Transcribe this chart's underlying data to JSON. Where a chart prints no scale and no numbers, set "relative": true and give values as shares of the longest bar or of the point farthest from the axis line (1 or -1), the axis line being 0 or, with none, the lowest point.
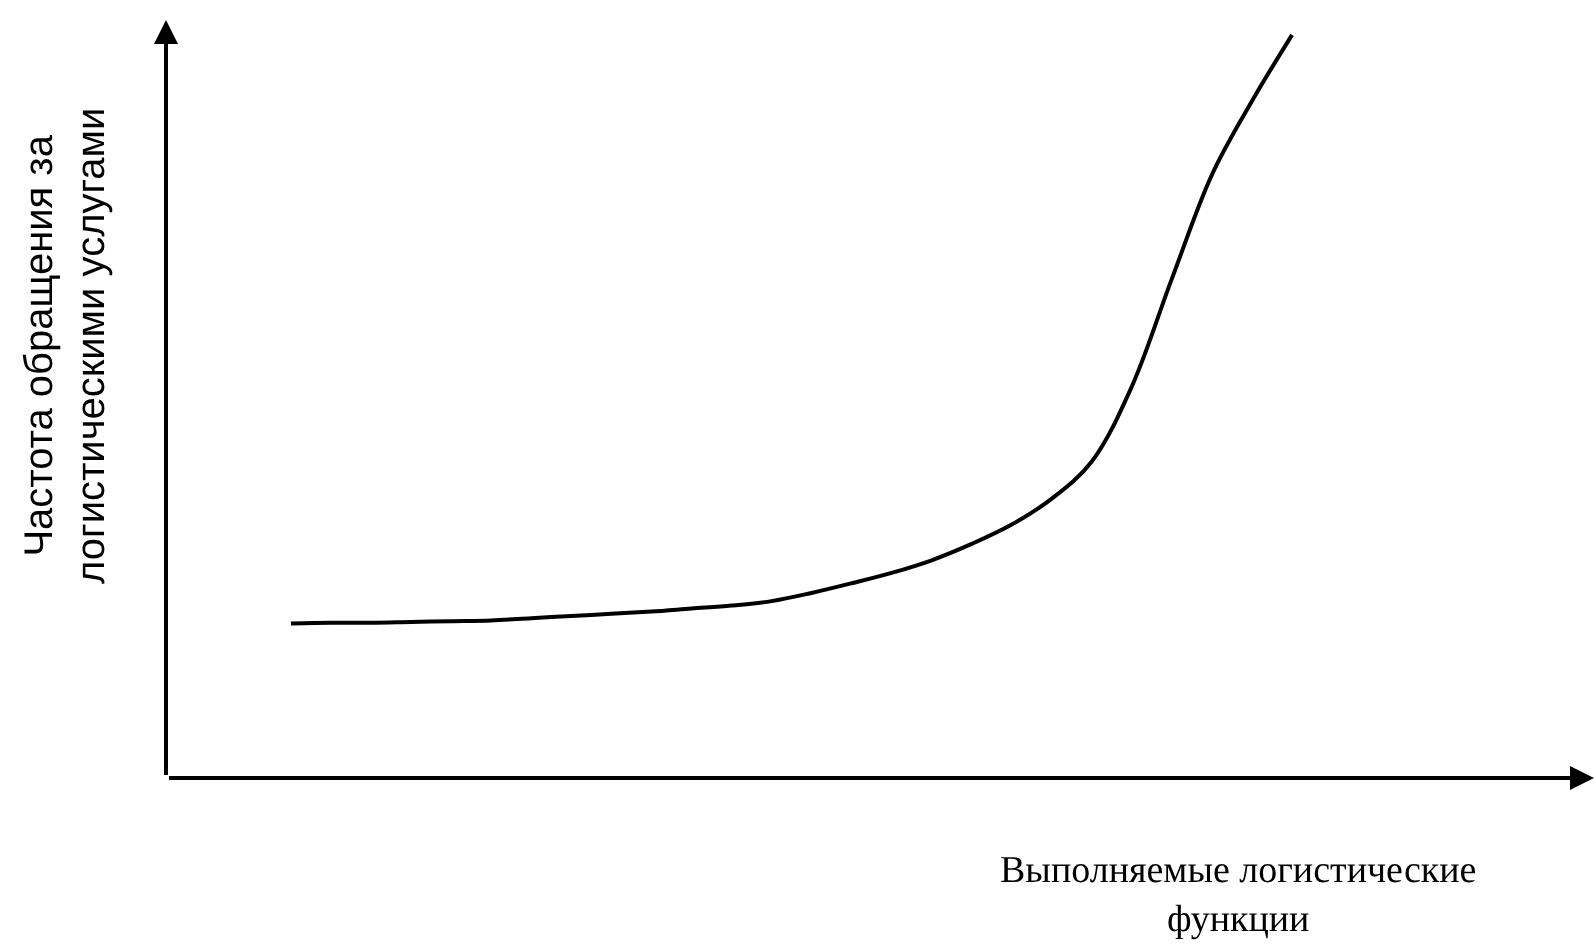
{
  "chart_data": {
    "type": "line",
    "relative": true,
    "categories": [
      null,
      null,
      null,
      null,
      null,
      null,
      null,
      null,
      null,
      null,
      null,
      null,
      null,
      null,
      null,
      null,
      null,
      null,
      null,
      null,
      null,
      null,
      null,
      null,
      null,
      null
    ],
    "values": [
      0.208,
      0.209,
      0.209,
      0.21,
      0.211,
      0.212,
      0.215,
      0.218,
      0.221,
      0.224,
      0.228,
      0.232,
      0.238,
      0.249,
      0.262,
      0.276,
      0.293,
      0.315,
      0.341,
      0.376,
      0.426,
      0.527,
      0.672,
      0.812,
      0.911,
      1
    ],
    "color": "#000000",
    "xlabel": "Выполняемые логистические функции",
    "ylabel": "Частота обращения за логистическими услугами"
  }
}
